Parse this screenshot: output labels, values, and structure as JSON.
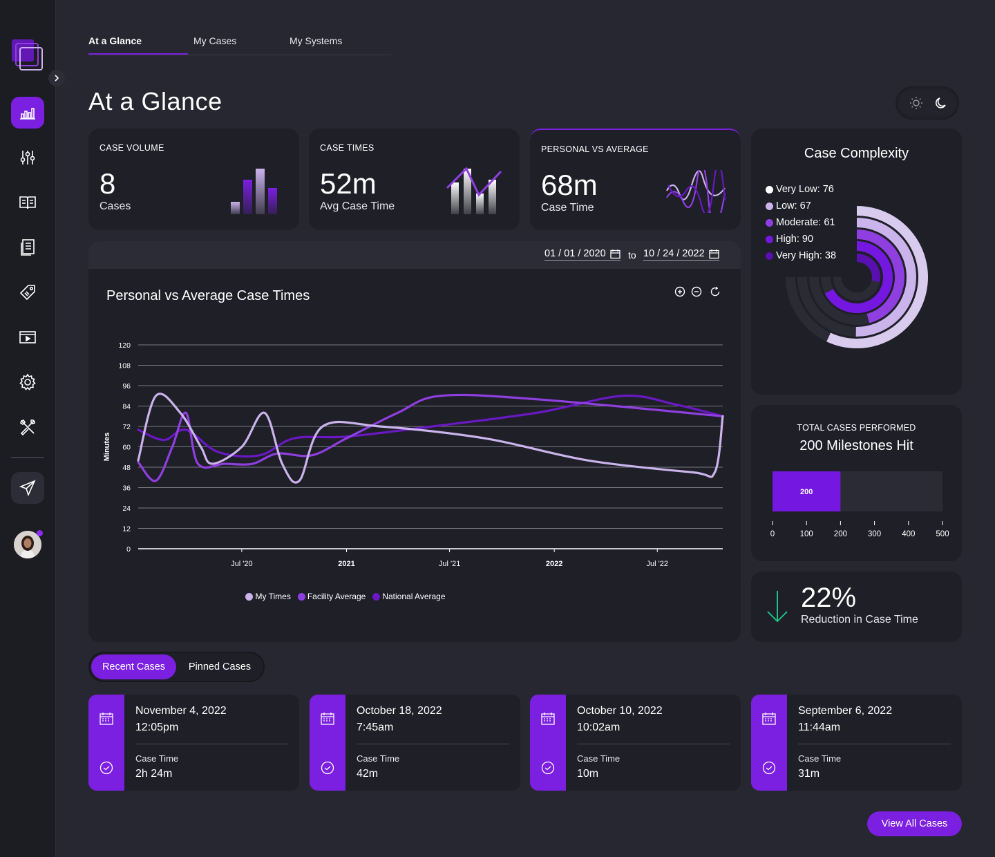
{
  "nav": {
    "tabs": [
      {
        "label": "At a Glance",
        "active": true
      },
      {
        "label": "My Cases",
        "active": false
      },
      {
        "label": "My Systems",
        "active": false
      }
    ],
    "sidebar_icons": [
      "chart-bars-icon",
      "sliders-icon",
      "book-icon",
      "document-icon",
      "tag-icon",
      "media-icon",
      "gear-icon",
      "tools-icon",
      "send-icon"
    ]
  },
  "page": {
    "title": "At a Glance"
  },
  "theme": {
    "options": [
      "sun-icon",
      "moon-icon"
    ]
  },
  "stats": [
    {
      "label": "CASE VOLUME",
      "value": "8",
      "sub": "Cases"
    },
    {
      "label": "CASE TIMES",
      "value": "52m",
      "sub": "Avg Case Time"
    },
    {
      "label": "PERSONAL VS AVERAGE",
      "value": "68m",
      "sub": "Case Time"
    }
  ],
  "date_range": {
    "from": "01 / 01 / 2020",
    "to_label": "to",
    "to": "10 / 24 / 2022"
  },
  "chart_data": {
    "type": "line",
    "title": "Personal vs Average Case Times",
    "xlabel": "",
    "ylabel": "Minutes",
    "ylim": [
      0,
      120
    ],
    "yticks": [
      0,
      12,
      24,
      36,
      48,
      60,
      72,
      84,
      96,
      108,
      120
    ],
    "xticks": [
      "Jul '20",
      "2021",
      "Jul '21",
      "2022",
      "Jul '22"
    ],
    "xlim": [
      "2020-01-01",
      "2022-10-24"
    ],
    "legend": "bottom",
    "series": [
      {
        "name": "My Times",
        "color": "#cbb3ec",
        "points": [
          [
            "2020-01-01",
            52
          ],
          [
            "2020-02-01",
            90
          ],
          [
            "2020-03-15",
            80
          ],
          [
            "2020-04-20",
            60
          ],
          [
            "2020-05-10",
            50
          ],
          [
            "2020-07-01",
            60
          ],
          [
            "2020-08-10",
            80
          ],
          [
            "2020-09-10",
            50
          ],
          [
            "2020-10-10",
            40
          ],
          [
            "2020-11-20",
            72
          ],
          [
            "2021-03-01",
            72
          ],
          [
            "2021-09-01",
            65
          ],
          [
            "2022-03-01",
            52
          ],
          [
            "2022-09-01",
            45
          ],
          [
            "2022-10-10",
            45
          ],
          [
            "2022-10-24",
            78
          ]
        ]
      },
      {
        "name": "Facility Average",
        "color": "#8f3fe0",
        "points": [
          [
            "2020-01-01",
            51
          ],
          [
            "2020-02-01",
            40
          ],
          [
            "2020-03-01",
            60
          ],
          [
            "2020-03-25",
            80
          ],
          [
            "2020-04-15",
            50
          ],
          [
            "2020-06-01",
            50
          ],
          [
            "2020-07-20",
            50
          ],
          [
            "2020-09-01",
            56
          ],
          [
            "2020-11-01",
            55
          ],
          [
            "2021-01-01",
            65
          ],
          [
            "2021-04-01",
            80
          ],
          [
            "2021-06-15",
            90
          ],
          [
            "2021-12-01",
            88
          ],
          [
            "2022-10-24",
            78
          ]
        ]
      },
      {
        "name": "National Average",
        "color": "#6a18c4",
        "points": [
          [
            "2020-01-01",
            70
          ],
          [
            "2020-02-15",
            64
          ],
          [
            "2020-03-25",
            70
          ],
          [
            "2020-05-20",
            57
          ],
          [
            "2020-08-01",
            55
          ],
          [
            "2020-10-01",
            65
          ],
          [
            "2021-01-01",
            66
          ],
          [
            "2021-06-01",
            72
          ],
          [
            "2021-12-01",
            80
          ],
          [
            "2022-05-01",
            90
          ],
          [
            "2022-08-01",
            85
          ],
          [
            "2022-10-24",
            78
          ]
        ]
      }
    ]
  },
  "chart_controls": [
    "zoom-in-icon",
    "zoom-out-icon",
    "reset-icon"
  ],
  "complexity": {
    "title": "Case Complexity",
    "items": [
      {
        "label": "Very Low: 76",
        "value": 76,
        "color": "#ffffff"
      },
      {
        "label": "Low: 67",
        "value": 67,
        "color": "#cbb3ec"
      },
      {
        "label": "Moderate: 61",
        "value": 61,
        "color": "#8f3fe0"
      },
      {
        "label": "High: 90",
        "value": 90,
        "color": "#7417e0"
      },
      {
        "label": "Very High: 38",
        "value": 38,
        "color": "#5a0fb0"
      }
    ]
  },
  "total": {
    "label": "TOTAL CASES PERFORMED",
    "value": "200 Milestones Hit",
    "bar_value": 200,
    "bar_label": "200",
    "max": 500,
    "ticks": [
      "0",
      "100",
      "200",
      "300",
      "400",
      "500"
    ]
  },
  "reduction": {
    "value": "22%",
    "sub": "Reduction in Case Time"
  },
  "case_tabs": {
    "recent": "Recent Cases",
    "pinned": "Pinned Cases"
  },
  "cases": [
    {
      "date": "November 4, 2022",
      "time": "12:05pm",
      "label": "Case Time",
      "duration": "2h 24m"
    },
    {
      "date": "October 18, 2022",
      "time": "7:45am",
      "label": "Case Time",
      "duration": "42m"
    },
    {
      "date": "October 10, 2022",
      "time": "10:02am",
      "label": "Case Time",
      "duration": "10m"
    },
    {
      "date": "September 6, 2022",
      "time": "11:44am",
      "label": "Case Time",
      "duration": "31m"
    }
  ],
  "view_all": "View All Cases",
  "colors": {
    "accent": "#7b1fe0",
    "panel": "#1e1f27",
    "bg": "#262730",
    "down_arrow": "#1fbf83"
  }
}
